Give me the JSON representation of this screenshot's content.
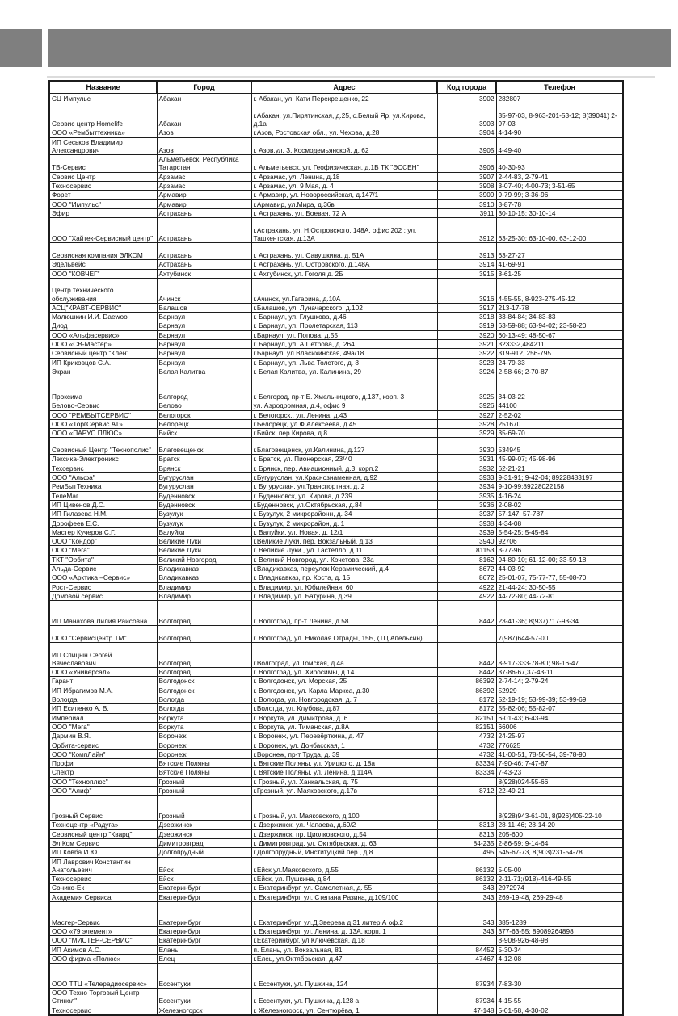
{
  "colors": {
    "banner": "#7f7f7f",
    "divider": "#dcdcdc",
    "table_border": "#1c1c1c",
    "text": "#0d0d0d"
  },
  "table": {
    "headers": [
      "Название",
      "Город",
      "Адрес",
      "Код города",
      "Телефон"
    ],
    "rows": [
      {
        "name": "СЦ Импульс",
        "city": "Абакан",
        "address": "г. Абакан, ул. Кати Перекрещенко, 22",
        "code": "3902",
        "phone": "282807",
        "lines": 1
      },
      {
        "name": "Сервис центр Homelife",
        "city": "Абакан",
        "address": "г.Абакан, ул.Пирятинская, д.25, с.Белый Яр, ул.Кирова, д.1а",
        "code": "3903",
        "phone": "35-97-03, 8-963-201-53-12; 8(39041) 2-97-03",
        "lines": 3
      },
      {
        "name": "ООО «Рембыттехника»",
        "city": "Азов",
        "address": "г.Азов, Ростовская обл., ул. Чехова, д.28",
        "code": "3904",
        "phone": "4-14-90",
        "lines": 1
      },
      {
        "name": "ИП Сеськов Владимир Александрович",
        "city": "Азов",
        "address": "г. Азов,ул. З. Космодемьянской, д. 62",
        "code": "3905",
        "phone": "4-49-40",
        "lines": 2
      },
      {
        "name": "ТВ-Сервис",
        "city": "Альметьевск, Республика Татарстан",
        "address": "г. Альметьевск,  ул. Геофизическая, д.1В ТК \"ЭССЕН\"",
        "code": "3906",
        "phone": "40-30-93",
        "lines": 2
      },
      {
        "name": "Сервис Центр",
        "city": "Арзамас",
        "address": "г. Арзамас, ул. Ленина, д.18",
        "code": "3907",
        "phone": "2-44-83, 2-79-41",
        "lines": 1
      },
      {
        "name": "Техносервис",
        "city": "Арзамас",
        "address": "г. Арзамас, ул. 9 Мая, д. 4",
        "code": "3908",
        "phone": "3-07-40; 4-00-73; 3-51-65",
        "lines": 1
      },
      {
        "name": "Форет",
        "city": "Армавир",
        "address": "г. Армавир,  ул. Новороссийская, д.147/1",
        "code": "3909",
        "phone": "9-79-99; 3-36-96",
        "lines": 1
      },
      {
        "name": "ООО \"Импульс\"",
        "city": "Армавир",
        "address": "г.Армавир, ул.Мира, д.36в",
        "code": "3910",
        "phone": "3-87-78",
        "lines": 1
      },
      {
        "name": "Эфир",
        "city": "Астрахань",
        "address": "г. Астрахань, ул. Боевая, 72 А",
        "code": "3911",
        "phone": "30-10-15; 30-10-14",
        "lines": 1
      },
      {
        "name": "ООО \"Хайтек-Сервисный центр\"",
        "city": "Астрахань",
        "address": "г.Астрахань, ул. Н.Островского, 148А, офис 202 ; ул. Ташкентская, д.13А",
        "code": "3912",
        "phone": "63-25-30; 63-10-00,  63-12-00",
        "lines": 3
      },
      {
        "name": "Сервисная компания ЭЛКОМ",
        "city": "Астрахань",
        "address": "г. Астрахань, ул. Савушкина, д. 51А",
        "code": "3913",
        "phone": "63-27-27",
        "lines": 2
      },
      {
        "name": "Эдельвейс",
        "city": "Астрахань",
        "address": "г. Астрахань, ул. Островского, д.148А",
        "code": "3914",
        "phone": "41-69-91",
        "lines": 1
      },
      {
        "name": "ООО \"КОВЧЕГ\"",
        "city": "Ахтубинск",
        "address": "г. Ахтубинск, ул. Гоголя д. 2Б",
        "code": "3915",
        "phone": "3-61-25",
        "lines": 1
      },
      {
        "name": "Центр технического обслуживания",
        "city": "Ачинск",
        "address": "г.Ачинск, ул.Гагарина, д.10А",
        "code": "3916",
        "phone": "4-55-55,  8-923-275-45-12",
        "lines": 3
      },
      {
        "name": "АСЦ\"КРАВТ-СЕРВИС\"",
        "city": "Балашов",
        "address": "г.Балашов, ул. Луначарского, д.102",
        "code": "3917",
        "phone": "213-17-78",
        "lines": 1
      },
      {
        "name": "Малюшкин И.И. Daewoo",
        "city": "Барнаул",
        "address": "г. Барнаул, ул. Глушкова, д.46",
        "code": "3918",
        "phone": "33-84-84; 34-83-83",
        "lines": 1
      },
      {
        "name": "Диод",
        "city": "Барнаул",
        "address": "г. Барнаул,  ул. Пролетарская, 113",
        "code": "3919",
        "phone": "63-59-88; 63-94-02; 23-58-20",
        "lines": 1
      },
      {
        "name": "ООО «Альфасервис»",
        "city": "Барнаул",
        "address": "г.Барнаул,  ул. Попова, д.55",
        "code": "3920",
        "phone": "60-13-49; 48-50-67",
        "lines": 1
      },
      {
        "name": "ООО «СВ-Мастер»",
        "city": "Барнаул",
        "address": "г. Барнаул, ул. А.Петрова, д. 264",
        "code": "3921",
        "phone": "323332,484211",
        "lines": 1
      },
      {
        "name": "Сервисный центр \"Клен\"",
        "city": "Барнаул",
        "address": "г.Барнаул, ул.Власихинская, 49а/18",
        "code": "3922",
        "phone": "319-912, 256-795",
        "lines": 1
      },
      {
        "name": "ИП Криковцов С.А.",
        "city": "Барнаул",
        "address": "г. Барнаул, ул. Льва Толстого, д. 8",
        "code": "3923",
        "phone": "24-79-33",
        "lines": 1
      },
      {
        "name": "Экран",
        "city": "Белая Калитва",
        "address": "г. Белая Калитва,  ул. Калинина, 29",
        "code": "3924",
        "phone": "2-58-66; 2-70-87",
        "lines": 1
      },
      {
        "name": "Проксима",
        "city": "Белгород",
        "address": "г. Белгород, пр-т Б. Хмельницкого, д.137, корп. 3",
        "code": "3925",
        "phone": "34-03-22",
        "lines": 3
      },
      {
        "name": "Белово-Сервис",
        "city": "Белово",
        "address": "ул. Аэродромная, д.4, офис 9",
        "code": "3926",
        "phone": "44100",
        "lines": 1
      },
      {
        "name": "ООО \"РЕМБЫТСЕРВИС\"",
        "city": "Белогорск",
        "address": "г. Белогорск., ул. Ленина, д.43",
        "code": "3927",
        "phone": "2-52-02",
        "lines": 1
      },
      {
        "name": "ООО «ТоргСервис АТ»",
        "city": "Белорецк",
        "address": "г.Белорецк, ул.Ф.Алексеева, д.45",
        "code": "3928",
        "phone": "251670",
        "lines": 1
      },
      {
        "name": "ООО «ПАРУС ПЛЮС»",
        "city": "Бийск",
        "address": "г.Бийск, пер.Кирова, д.8",
        "code": "3929",
        "phone": "35-69-70",
        "lines": 1
      },
      {
        "name": "Сервисный Центр \"Технополис\"",
        "city": "Благовещенск",
        "address": "г.Благовещенск, ул.Калинина, д.127",
        "code": "3930",
        "phone": "534945",
        "lines": 2
      },
      {
        "name": "Лексика-Электроникс",
        "city": "Братск",
        "address": "г. Братск, ул. Пионерская, 23/40",
        "code": "3931",
        "phone": "45-99-07; 45-98-96",
        "lines": 1
      },
      {
        "name": "Техсервис",
        "city": "Брянск",
        "address": "г. Брянск, пер. Авиационный, д.3, корп.2",
        "code": "3932",
        "phone": "62-21-21",
        "lines": 1
      },
      {
        "name": "ООО \"Альфа\"",
        "city": "Бугуруслан",
        "address": "г.Бугуруслан, ул.Краснознаменная, д.92",
        "code": "3933",
        "phone": "9-31-91; 9-42-04; 89228483197",
        "lines": 1
      },
      {
        "name": "РемБытТехника",
        "city": "Бугуруслан",
        "address": "г. Бугуруслан, ул.Транспортная, д. 2",
        "code": "3934",
        "phone": "9-10-99;89228022158",
        "lines": 1
      },
      {
        "name": "ТелеМаг",
        "city": "Буденновск",
        "address": "г. Буденновск, ул. Кирова, д.239",
        "code": "3935",
        "phone": "4-16-24",
        "lines": 1
      },
      {
        "name": "ИП Цивенов Д.С.",
        "city": "Буденновск",
        "address": "г.Буденновск, ул.Октябрьская, д.84",
        "code": "3936",
        "phone": "2-08-02",
        "lines": 1
      },
      {
        "name": "ИП Гилазева Н.М.",
        "city": "Бузулук",
        "address": "г. Бузулук, 2 микрорайонн, д. 34",
        "code": "3937",
        "phone": "57-147; 57-787",
        "lines": 1
      },
      {
        "name": "Дорофеев Е.С.",
        "city": "Бузулук",
        "address": "г. Бузулук, 2 микрорайон, д. 1",
        "code": "3938",
        "phone": "4-34-08",
        "lines": 1
      },
      {
        "name": "Мастер Кучеров С.Г.",
        "city": "Валуйки",
        "address": "г. Валуйки, ул. Новая, д. 12/1",
        "code": "3939",
        "phone": "5-54-25; 5-45-84",
        "lines": 1
      },
      {
        "name": "ООО \"Кондор\"",
        "city": "Великие Луки",
        "address": "г.Великие Луки, пер. Вокзальный, д.13",
        "code": "3940",
        "phone": "92706",
        "lines": 1
      },
      {
        "name": "ООО \"Мега\"",
        "city": "Великие Луки",
        "address": "г. Великие Луки , ул. Гастелло, д.11",
        "code": "81153",
        "phone": "3-77-96",
        "lines": 1
      },
      {
        "name": "ТКТ \"Орбита\"",
        "city": "Великий Новгород",
        "address": "г. Великий Новгород, ул. Кочетова, 23а",
        "code": "8162",
        "phone": "94-80-10; 61-12-00; 33-59-18;",
        "lines": 1
      },
      {
        "name": "Альда-Сервис",
        "city": "Владикавказ",
        "address": "г.Владикавказ, переулок Керамический, д.4",
        "code": "8672",
        "phone": "44-03-92",
        "lines": 1
      },
      {
        "name": "ООО «Арктика –Сервис»",
        "city": "Владикавказ",
        "address": "г. Владикавказ, пр. Коста, д. 15",
        "code": "8672",
        "phone": "25-01-07, 75-77-77, 55-08-70",
        "lines": 1
      },
      {
        "name": "Рост-Сервис",
        "city": "Владимир",
        "address": "г. Владимир, ул. Юбилейная, 60",
        "code": "4922",
        "phone": "21-44-24; 30-50-55",
        "lines": 1
      },
      {
        "name": "Домовой сервис",
        "city": "Владимир",
        "address": "г. Владимир, ул. Батурина, д.39",
        "code": "4922",
        "phone": "44-72-80; 44-72-81",
        "lines": 1
      },
      {
        "name": "ИП Манахова Лилия Раисовна",
        "city": "Волгоград",
        "address": "г. Волгоград, пр-т Ленина, д.58",
        "code": "8442",
        "phone": "23-41-36; 8(937)717-93-34",
        "lines": 3
      },
      {
        "name": "ООО \"Сервисцентр ТМ\"",
        "city": "Волгоград",
        "address": "г. Волгоград, ул. Николая Отрады, 15Б, (ТЦ Апельсин)",
        "code": "",
        "phone": "7(987)644-57-00",
        "lines": 2
      },
      {
        "name": "ИП Спицын Сергей Вячеславович",
        "city": "Волгоград",
        "address": "г.Волгоград, ул.Томская, д.4а",
        "code": "8442",
        "phone": "8-917-333-78-80; 98-16-47",
        "lines": 3
      },
      {
        "name": "ООО «Универсал»",
        "city": "Волгоград",
        "address": "г. Волгоград, ул. Хиросимы, д.14",
        "code": "8442",
        "phone": "37-86-67,37-43-11",
        "lines": 1
      },
      {
        "name": "Гарант",
        "city": "Волгодонск",
        "address": "г. Волгодонск, ул. Морская, 25",
        "code": "86392",
        "phone": "2-74-14; 2-79-24",
        "lines": 1
      },
      {
        "name": "ИП Ибрагимов М.А.",
        "city": "Волгодонск",
        "address": "г. Волгодонск, ул. Карла Маркса, д.30",
        "code": "86392",
        "phone": "52929",
        "lines": 1
      },
      {
        "name": "Вологда",
        "city": "Вологда",
        "address": "г. Вологда,  ул. Новгородская, д. 7",
        "code": "8172",
        "phone": "52-19-19; 53-99-39; 53-99-69",
        "lines": 1
      },
      {
        "name": "ИП Есипенко А. В.",
        "city": "Вологда",
        "address": "г.Вологда, ул. Клубова, д.87",
        "code": "8172",
        "phone": "55-82-06; 55-82-07",
        "lines": 1
      },
      {
        "name": "Империал",
        "city": "Воркута",
        "address": "г. Воркута, ул. Димитрова, д. 6",
        "code": "82151",
        "phone": "6-01-43; 6-43-94",
        "lines": 1
      },
      {
        "name": "ООО \"Мега\"",
        "city": "Воркута",
        "address": "г. Воркута, ул. Тиманская, д.8А",
        "code": "82151",
        "phone": "66006",
        "lines": 1
      },
      {
        "name": "Дармин В.Я.",
        "city": "Воронеж",
        "address": "г. Воронеж, ул. Перевёрткина, д. 47",
        "code": "4732",
        "phone": "24-25-97",
        "lines": 1
      },
      {
        "name": "Орбита-сервис",
        "city": "Воронеж",
        "address": "г. Воронеж, ул. Донбасская, 1",
        "code": "4732",
        "phone": "776625",
        "lines": 1
      },
      {
        "name": "ООО \"КомпЛайн\"",
        "city": "Воронеж",
        "address": "г.Воронеж, пр-т Труда, д. 39",
        "code": "4732",
        "phone": "41-00-51, 78-50-54, 39-78-90",
        "lines": 1
      },
      {
        "name": "Профи",
        "city": "Вятские Поляны",
        "address": "г. Вятские Поляны,  ул. Урицкого, д. 18а",
        "code": "83334",
        "phone": "7-90-46; 7-47-87",
        "lines": 1
      },
      {
        "name": "Спектр",
        "city": "Вятские Поляны",
        "address": "г. Вятские Поляны, ул. Ленина, д.114А",
        "code": "83334",
        "phone": "7-43-23",
        "lines": 1
      },
      {
        "name": "ООО \"Техноплюс\"",
        "city": "Грозный",
        "address": "г. Грозный, ул. Ханкальская, д. 75",
        "code": "",
        "phone": "8(928)024-55-66",
        "lines": 1
      },
      {
        "name": "ООО \"Алиф\"",
        "city": "Грозный",
        "address": "г.Грозный, ул. Маяковского, д.17в",
        "code": "8712",
        "phone": "22-49-21",
        "lines": 1
      },
      {
        "name": "Грозный Сервис",
        "city": "Грозный",
        "address": "г. Грозный, ул. Маяковского, д.100",
        "code": "",
        "phone": "8(928)943-61-01, 8(926)405-22-10",
        "lines": 3
      },
      {
        "name": "Техноцентр «Радуга»",
        "city": "Дзержинск",
        "address": "г. Дзержинск,  ул. Чапаева, д.69/2",
        "code": "8313",
        "phone": "28-11-46; 28-14-20",
        "lines": 1
      },
      {
        "name": "Сервисный центр \"Кварц\"",
        "city": "Дзержинск",
        "address": "г. Дзержинск, пр. Циолковского, д.54",
        "code": "8313",
        "phone": "205-600",
        "lines": 1
      },
      {
        "name": "Эл Ком Сервис",
        "city": "Димитровград",
        "address": "г. Димитровград, ул. Октябрьская, д. 63",
        "code": "84-235",
        "phone": "2-86-59; 9-14-64",
        "lines": 1
      },
      {
        "name": "ИП Ковба И.Ю.",
        "city": "Долгопрудный",
        "address": "г.Долгопрудный, Институцкий пер., д.8",
        "code": "495",
        "phone": "545-67-73, 8(903)231-54-78",
        "lines": 1
      },
      {
        "name": "ИП Лаврович Константин Анатольевич",
        "city": "Ейск",
        "address": "г.Ейск ул.Маяковского,  д.55",
        "code": "86132",
        "phone": "5-05-00",
        "lines": 2
      },
      {
        "name": "Техносервис",
        "city": "Ейск",
        "address": "г.Ейск, ул. Пушкина, д.84",
        "code": "86132",
        "phone": "2-11-71;(918)-416-49-55",
        "lines": 1
      },
      {
        "name": "Сонико-Ек",
        "city": "Екатеринбург",
        "address": "г. Екатеринбург, ул. Самолетная, д. 55",
        "code": "343",
        "phone": "2972974",
        "lines": 1
      },
      {
        "name": "Академия Сервиса",
        "city": "Екатеринбург",
        "address": "г. Екатеринбург, ул. Степана Разина, д.109/100",
        "code": "343",
        "phone": "269-19-48, 269-29-48",
        "lines": 1
      },
      {
        "name": "Мастер-Сервис",
        "city": "Екатеринбург",
        "address": "г. Екатеринбург, ул.Д.Зверева д.31 литер А оф.2",
        "code": "343",
        "phone": "385-1289",
        "lines": 3
      },
      {
        "name": "ООО «79 элемент»",
        "city": "Екатеринбург",
        "address": "г. Екатеринбург, ул. Ленина, д. 13А, корп. 1",
        "code": "343",
        "phone": "377-63-55; 89089264898",
        "lines": 1
      },
      {
        "name": "ООО \"МИСТЕР-СЕРВИС\"",
        "city": "Екатеринбург",
        "address": "г.Екатеринбург, ул.Ключевская, д.18",
        "code": "",
        "phone": "8-908-926-48-98",
        "lines": 1
      },
      {
        "name": "ИП Акимов А.С.",
        "city": "Елань",
        "address": "п. Елань, ул. Вокзальная, 81",
        "code": "84452",
        "phone": "5-30-34",
        "lines": 1
      },
      {
        "name": "ООО фирма «Полюс»",
        "city": "Елец",
        "address": "г.Елец, ул.Октябрьская, д.47",
        "code": "47467",
        "phone": "4-12-08",
        "lines": 1
      },
      {
        "name": "ООО ТТЦ «Телерадиосервис»",
        "city": "Ессентуки",
        "address": "г. Ессентуки, ул. Пушкина, 124",
        "code": "87934",
        "phone": "7-83-30",
        "lines": 3
      },
      {
        "name": "ООО Техно Торговый Центр Стинол\"",
        "city": "Ессентуки",
        "address": "г. Ессентуки, ул. Пушкина, д.128 а",
        "code": "87934",
        "phone": "4-15-55",
        "lines": 2
      },
      {
        "name": "Техносервис",
        "city": "Железногорск",
        "address": "г. Железногорск, ул. Сентюрёва, 1",
        "code": "47-148",
        "phone": "5-01-58, 4-30-02",
        "lines": 1
      }
    ]
  }
}
